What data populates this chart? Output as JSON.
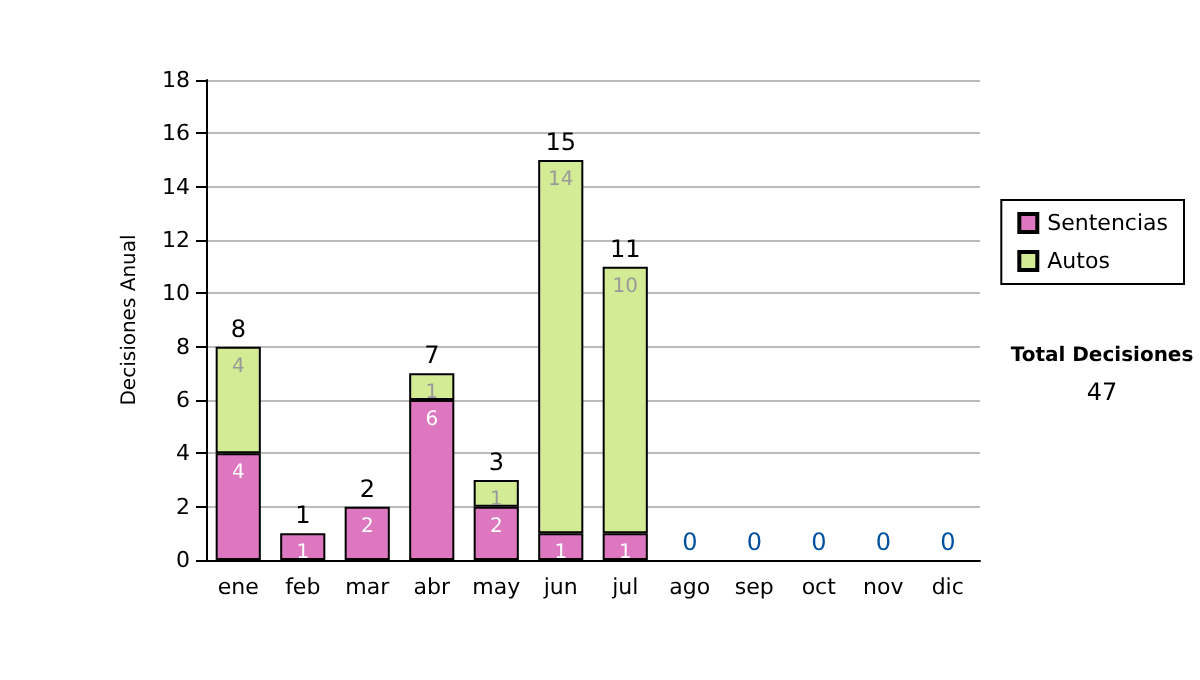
{
  "chart_data": {
    "type": "bar",
    "stacked": true,
    "ylabel": "Decisiones Anual",
    "categories": [
      "ene",
      "feb",
      "mar",
      "abr",
      "may",
      "jun",
      "jul",
      "ago",
      "sep",
      "oct",
      "nov",
      "dic"
    ],
    "series": [
      {
        "name": "Sentencias",
        "color": "#dd77c0",
        "values": [
          4,
          1,
          2,
          6,
          2,
          1,
          1,
          0,
          0,
          0,
          0,
          0
        ],
        "value_labels": [
          "4",
          "1",
          "2",
          "6",
          "2",
          "1",
          "1",
          null,
          null,
          null,
          null,
          null
        ]
      },
      {
        "name": "Autos",
        "color": "#d4eb96",
        "values": [
          4,
          0,
          0,
          1,
          1,
          14,
          10,
          0,
          0,
          0,
          0,
          0
        ],
        "value_labels": [
          "4",
          null,
          null,
          "1",
          "1",
          "14",
          "10",
          null,
          null,
          null,
          null,
          null
        ]
      }
    ],
    "totals": [
      "8",
      "1",
      "2",
      "7",
      "3",
      "15",
      "11",
      "0",
      "0",
      "0",
      "0",
      "0"
    ],
    "ylim": [
      0,
      18
    ],
    "yticks": [
      0,
      2,
      4,
      6,
      8,
      10,
      12,
      14,
      16,
      18
    ],
    "grid": "y",
    "legend": "right",
    "annotations": [
      "Total Decisiones",
      "47"
    ]
  }
}
